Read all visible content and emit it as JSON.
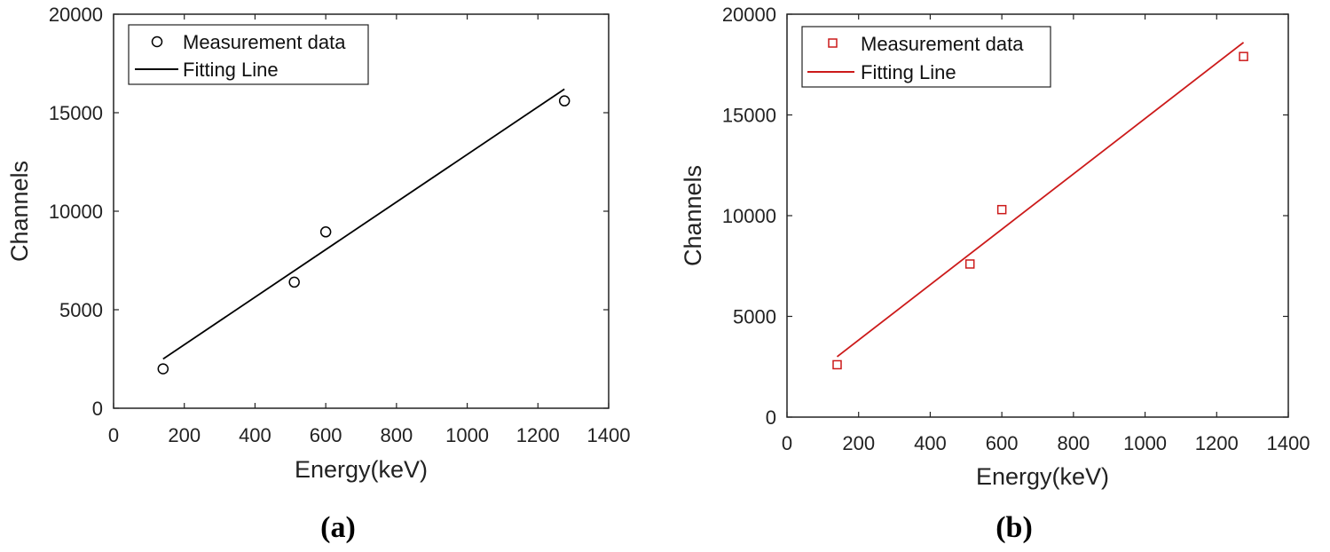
{
  "chart_data": [
    {
      "type": "scatter",
      "panel_label": "(a)",
      "xlabel": "Energy(keV)",
      "ylabel": "Channels",
      "xlim": [
        0,
        1400
      ],
      "ylim": [
        0,
        20000
      ],
      "xticks": [
        0,
        200,
        400,
        600,
        800,
        1000,
        1200,
        1400
      ],
      "yticks": [
        0,
        5000,
        10000,
        15000,
        20000
      ],
      "legend_position": "top-left",
      "color": "#000000",
      "marker": "circle",
      "series": [
        {
          "name": "Measurement data",
          "kind": "points",
          "x": [
            140,
            511,
            600,
            1275
          ],
          "y": [
            2000,
            6400,
            8950,
            15600
          ]
        },
        {
          "name": "Fitting Line",
          "kind": "line",
          "x": [
            140,
            1275
          ],
          "y": [
            2500,
            16200
          ]
        }
      ]
    },
    {
      "type": "scatter",
      "panel_label": "(b)",
      "xlabel": "Energy(keV)",
      "ylabel": "Channels",
      "xlim": [
        0,
        1400
      ],
      "ylim": [
        0,
        20000
      ],
      "xticks": [
        0,
        200,
        400,
        600,
        800,
        1000,
        1200,
        1400
      ],
      "yticks": [
        0,
        5000,
        10000,
        15000,
        20000
      ],
      "legend_position": "top-left",
      "color": "#cc1a1a",
      "marker": "square",
      "series": [
        {
          "name": "Measurement data",
          "kind": "points",
          "x": [
            140,
            511,
            600,
            1275
          ],
          "y": [
            2600,
            7600,
            10300,
            17900
          ]
        },
        {
          "name": "Fitting Line",
          "kind": "line",
          "x": [
            140,
            1275
          ],
          "y": [
            3000,
            18600
          ]
        }
      ]
    }
  ]
}
